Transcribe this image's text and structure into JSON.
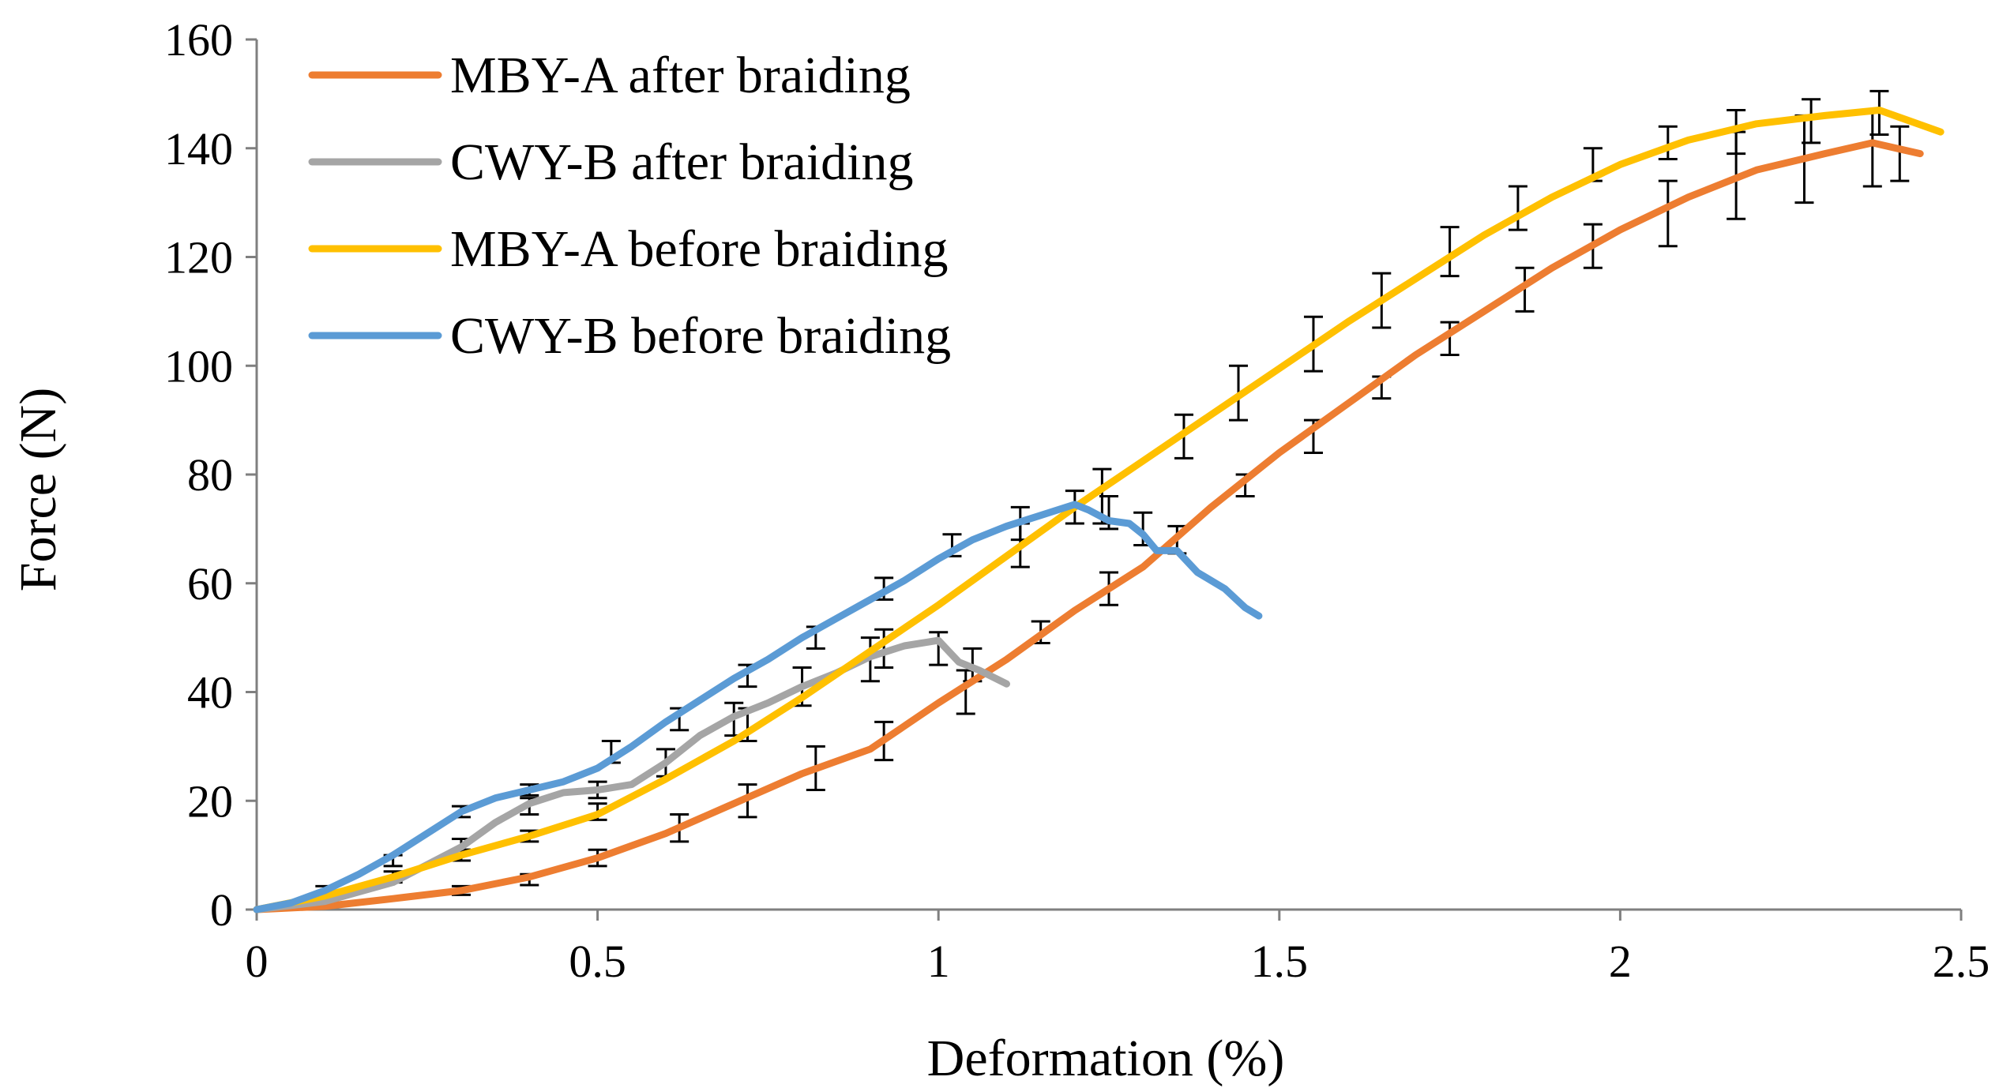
{
  "chart_data": {
    "type": "line",
    "title": "",
    "xlabel": "Deformation (%)",
    "ylabel": "Force (N)",
    "xlim": [
      0,
      2.5
    ],
    "ylim": [
      0,
      160
    ],
    "x_ticks": [
      "0",
      "0.5",
      "1",
      "1.5",
      "2",
      "2.5"
    ],
    "y_ticks": [
      "0",
      "20",
      "40",
      "60",
      "80",
      "100",
      "120",
      "140",
      "160"
    ],
    "grid": false,
    "legend_position": "top-left",
    "series": [
      {
        "name": "MBY-A after braiding",
        "color": "#ED7D31",
        "points": [
          [
            0,
            0
          ],
          [
            0.1,
            0.6
          ],
          [
            0.2,
            2
          ],
          [
            0.3,
            3.5
          ],
          [
            0.4,
            6
          ],
          [
            0.5,
            9.5
          ],
          [
            0.6,
            14
          ],
          [
            0.7,
            19.5
          ],
          [
            0.8,
            25
          ],
          [
            0.9,
            29.5
          ],
          [
            1.0,
            38
          ],
          [
            1.1,
            46
          ],
          [
            1.2,
            55
          ],
          [
            1.3,
            63
          ],
          [
            1.4,
            74
          ],
          [
            1.5,
            84
          ],
          [
            1.6,
            93
          ],
          [
            1.7,
            102
          ],
          [
            1.8,
            110
          ],
          [
            1.9,
            118
          ],
          [
            2.0,
            125
          ],
          [
            2.1,
            131
          ],
          [
            2.2,
            136
          ],
          [
            2.3,
            139
          ],
          [
            2.37,
            141
          ],
          [
            2.44,
            139
          ]
        ],
        "error_bars": [
          [
            0.3,
            3.5,
            0.8
          ],
          [
            0.4,
            5.5,
            1.0
          ],
          [
            0.5,
            9.5,
            1.5
          ],
          [
            0.62,
            15,
            2.5
          ],
          [
            0.72,
            20,
            3
          ],
          [
            0.82,
            26,
            4
          ],
          [
            0.92,
            31,
            3.5
          ],
          [
            1.04,
            40,
            4
          ],
          [
            1.15,
            51,
            2
          ],
          [
            1.25,
            59,
            3
          ],
          [
            1.35,
            68,
            2.5
          ],
          [
            1.45,
            78,
            2
          ],
          [
            1.55,
            87,
            3
          ],
          [
            1.65,
            96,
            2
          ],
          [
            1.75,
            105,
            3
          ],
          [
            1.86,
            114,
            4
          ],
          [
            1.96,
            122,
            4
          ],
          [
            2.07,
            128,
            6
          ],
          [
            2.17,
            135,
            8
          ],
          [
            2.27,
            138,
            8
          ],
          [
            2.37,
            140,
            7
          ],
          [
            2.41,
            139,
            5
          ]
        ]
      },
      {
        "name": "CWY-B after braiding",
        "color": "#A5A5A5",
        "points": [
          [
            0,
            0
          ],
          [
            0.1,
            1.5
          ],
          [
            0.2,
            5
          ],
          [
            0.3,
            11.5
          ],
          [
            0.35,
            16
          ],
          [
            0.4,
            19.5
          ],
          [
            0.45,
            21.5
          ],
          [
            0.5,
            22
          ],
          [
            0.55,
            23
          ],
          [
            0.6,
            27
          ],
          [
            0.65,
            32
          ],
          [
            0.7,
            35.5
          ],
          [
            0.75,
            38
          ],
          [
            0.8,
            41
          ],
          [
            0.85,
            43.5
          ],
          [
            0.9,
            46.5
          ],
          [
            0.95,
            48.5
          ],
          [
            1.0,
            49.5
          ],
          [
            1.03,
            45.5
          ],
          [
            1.06,
            44
          ],
          [
            1.1,
            41.5
          ]
        ],
        "error_bars": [
          [
            0.3,
            12,
            1
          ],
          [
            0.4,
            19,
            1.5
          ],
          [
            0.5,
            22,
            1.5
          ],
          [
            0.6,
            27,
            2.5
          ],
          [
            0.7,
            35,
            3
          ],
          [
            0.8,
            41,
            3.5
          ],
          [
            0.9,
            46,
            4
          ],
          [
            1.0,
            48,
            3
          ],
          [
            1.05,
            45,
            3
          ]
        ]
      },
      {
        "name": "MBY-A before braiding",
        "color": "#FFC000",
        "points": [
          [
            0,
            0
          ],
          [
            0.1,
            2.5
          ],
          [
            0.2,
            6
          ],
          [
            0.3,
            10
          ],
          [
            0.4,
            13.5
          ],
          [
            0.5,
            17.5
          ],
          [
            0.6,
            24
          ],
          [
            0.7,
            31
          ],
          [
            0.8,
            39
          ],
          [
            0.9,
            47.5
          ],
          [
            1.0,
            56
          ],
          [
            1.1,
            65
          ],
          [
            1.2,
            74
          ],
          [
            1.3,
            82.5
          ],
          [
            1.4,
            91
          ],
          [
            1.5,
            99.5
          ],
          [
            1.6,
            108
          ],
          [
            1.7,
            116
          ],
          [
            1.8,
            124
          ],
          [
            1.9,
            131
          ],
          [
            2.0,
            137
          ],
          [
            2.1,
            141.5
          ],
          [
            2.2,
            144.5
          ],
          [
            2.3,
            146
          ],
          [
            2.38,
            147
          ],
          [
            2.47,
            143
          ]
        ],
        "error_bars": [
          [
            0.2,
            6,
            1
          ],
          [
            0.3,
            10,
            1
          ],
          [
            0.4,
            13.5,
            1
          ],
          [
            0.5,
            18,
            1.5
          ],
          [
            0.72,
            34,
            3
          ],
          [
            0.92,
            48,
            3.5
          ],
          [
            1.12,
            67,
            4
          ],
          [
            1.24,
            76,
            5
          ],
          [
            1.36,
            87,
            4
          ],
          [
            1.44,
            95,
            5
          ],
          [
            1.55,
            104,
            5
          ],
          [
            1.65,
            112,
            5
          ],
          [
            1.75,
            121,
            4.5
          ],
          [
            1.85,
            129,
            4
          ],
          [
            1.96,
            137,
            3
          ],
          [
            2.07,
            141,
            3
          ],
          [
            2.17,
            143,
            4
          ],
          [
            2.28,
            145,
            4
          ],
          [
            2.38,
            146.5,
            4
          ]
        ]
      },
      {
        "name": "CWY-B before braiding",
        "color": "#5B9BD5",
        "points": [
          [
            0,
            0
          ],
          [
            0.05,
            1.2
          ],
          [
            0.1,
            3.5
          ],
          [
            0.15,
            6.5
          ],
          [
            0.2,
            10
          ],
          [
            0.25,
            14
          ],
          [
            0.3,
            18
          ],
          [
            0.35,
            20.5
          ],
          [
            0.4,
            22
          ],
          [
            0.45,
            23.5
          ],
          [
            0.5,
            26
          ],
          [
            0.55,
            30
          ],
          [
            0.6,
            34.5
          ],
          [
            0.65,
            38.5
          ],
          [
            0.7,
            42.5
          ],
          [
            0.75,
            46
          ],
          [
            0.8,
            50
          ],
          [
            0.85,
            53.5
          ],
          [
            0.9,
            57
          ],
          [
            0.95,
            60.5
          ],
          [
            1.0,
            64.5
          ],
          [
            1.05,
            68
          ],
          [
            1.1,
            70.5
          ],
          [
            1.15,
            72.5
          ],
          [
            1.2,
            74.5
          ],
          [
            1.22,
            73.5
          ],
          [
            1.25,
            71.5
          ],
          [
            1.28,
            71
          ],
          [
            1.3,
            69
          ],
          [
            1.32,
            66
          ],
          [
            1.35,
            66
          ],
          [
            1.38,
            62
          ],
          [
            1.42,
            59
          ],
          [
            1.45,
            55.5
          ],
          [
            1.47,
            54
          ]
        ],
        "error_bars": [
          [
            0.1,
            3.5,
            0.8
          ],
          [
            0.2,
            9,
            1
          ],
          [
            0.3,
            18,
            1
          ],
          [
            0.4,
            22,
            1
          ],
          [
            0.52,
            29,
            2
          ],
          [
            0.62,
            35,
            2
          ],
          [
            0.72,
            43,
            2
          ],
          [
            0.82,
            50,
            2
          ],
          [
            0.92,
            59,
            2
          ],
          [
            1.02,
            67,
            2
          ],
          [
            1.12,
            71,
            3
          ],
          [
            1.2,
            74,
            3
          ],
          [
            1.25,
            73,
            3
          ],
          [
            1.3,
            70,
            3
          ]
        ]
      }
    ]
  }
}
